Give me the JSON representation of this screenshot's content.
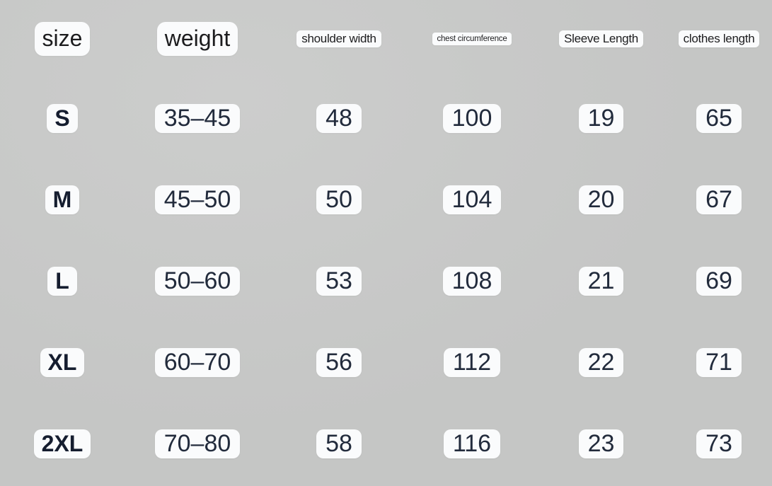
{
  "title": "clothing-size-chart",
  "colors": {
    "background": "#c9cac9",
    "pill_background": "#fafbfc",
    "header_text": "#1c1c1e",
    "value_text": "#222b3c",
    "size_label_text": "#151d2f"
  },
  "table": {
    "header": {
      "size": "size",
      "weight": "weight",
      "shoulder": "shoulder width",
      "chest": "chest circumference",
      "sleeve": "Sleeve Length",
      "clothes": "clothes length"
    },
    "rows": [
      {
        "size": "S",
        "weight": "35–45",
        "shoulder": "48",
        "chest": "100",
        "sleeve": "19",
        "clothes": "65"
      },
      {
        "size": "M",
        "weight": "45–50",
        "shoulder": "50",
        "chest": "104",
        "sleeve": "20",
        "clothes": "67"
      },
      {
        "size": "L",
        "weight": "50–60",
        "shoulder": "53",
        "chest": "108",
        "sleeve": "21",
        "clothes": "69"
      },
      {
        "size": "XL",
        "weight": "60–70",
        "shoulder": "56",
        "chest": "112",
        "sleeve": "22",
        "clothes": "71"
      },
      {
        "size": "2XL",
        "weight": "70–80",
        "shoulder": "58",
        "chest": "116",
        "sleeve": "23",
        "clothes": "73"
      }
    ]
  },
  "chart_data": {
    "type": "table",
    "title": "clothing size chart",
    "columns": [
      "size",
      "weight",
      "shoulder width",
      "chest circumference",
      "Sleeve Length",
      "clothes length"
    ],
    "rows": [
      [
        "S",
        "35–45",
        48,
        100,
        19,
        65
      ],
      [
        "M",
        "45–50",
        50,
        104,
        20,
        67
      ],
      [
        "L",
        "50–60",
        53,
        108,
        21,
        69
      ],
      [
        "XL",
        "60–70",
        56,
        112,
        22,
        71
      ],
      [
        "2XL",
        "70–80",
        58,
        116,
        23,
        73
      ]
    ]
  }
}
